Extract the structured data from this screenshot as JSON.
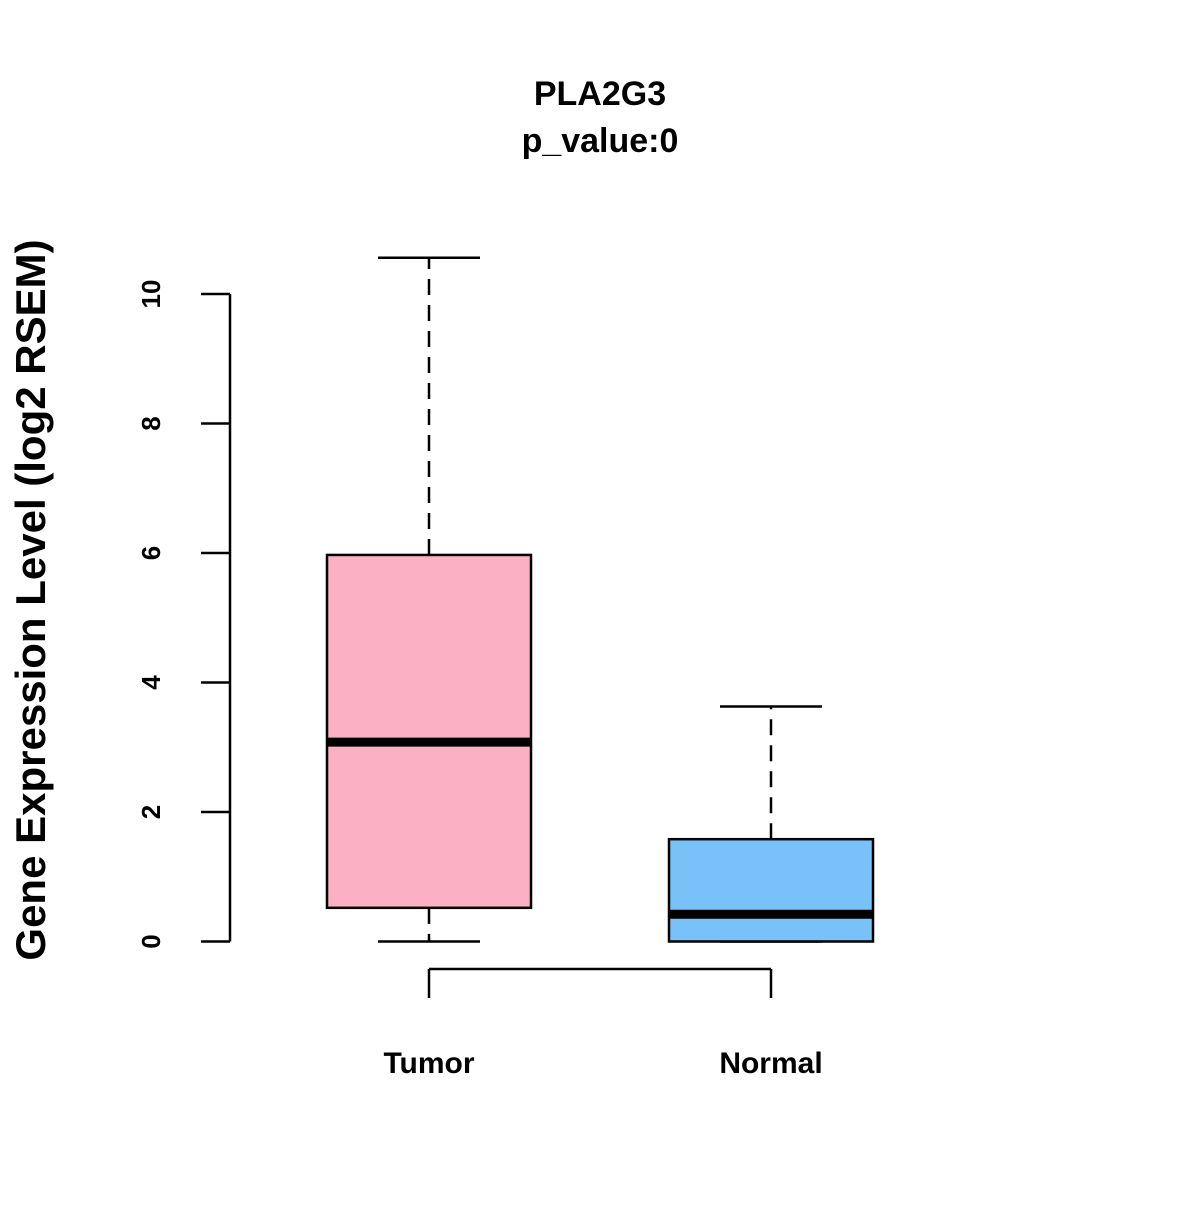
{
  "chart_data": {
    "type": "boxplot",
    "title": "PLA2G3",
    "subtitle": "p_value:0",
    "xlabel": "",
    "ylabel": "Gene Expression Level (log2 RSEM)",
    "ylim": [
      0,
      10
    ],
    "yticks": [
      0,
      2,
      4,
      6,
      8,
      10
    ],
    "ytick_labels": [
      "0",
      "2",
      "4",
      "6",
      "8",
      "10"
    ],
    "categories": [
      "Tumor",
      "Normal"
    ],
    "series": [
      {
        "category": "Tumor",
        "min": 0,
        "q1": 0.52,
        "median": 3.08,
        "q3": 5.97,
        "max": 10.56,
        "color": "#FBB1C3"
      },
      {
        "category": "Normal",
        "min": 0,
        "q1": 0,
        "median": 0.42,
        "q3": 1.58,
        "max": 3.63,
        "color": "#79C2F9"
      }
    ],
    "comparison_bracket": [
      "Tumor",
      "Normal"
    ],
    "grid": false,
    "legend": "none"
  }
}
